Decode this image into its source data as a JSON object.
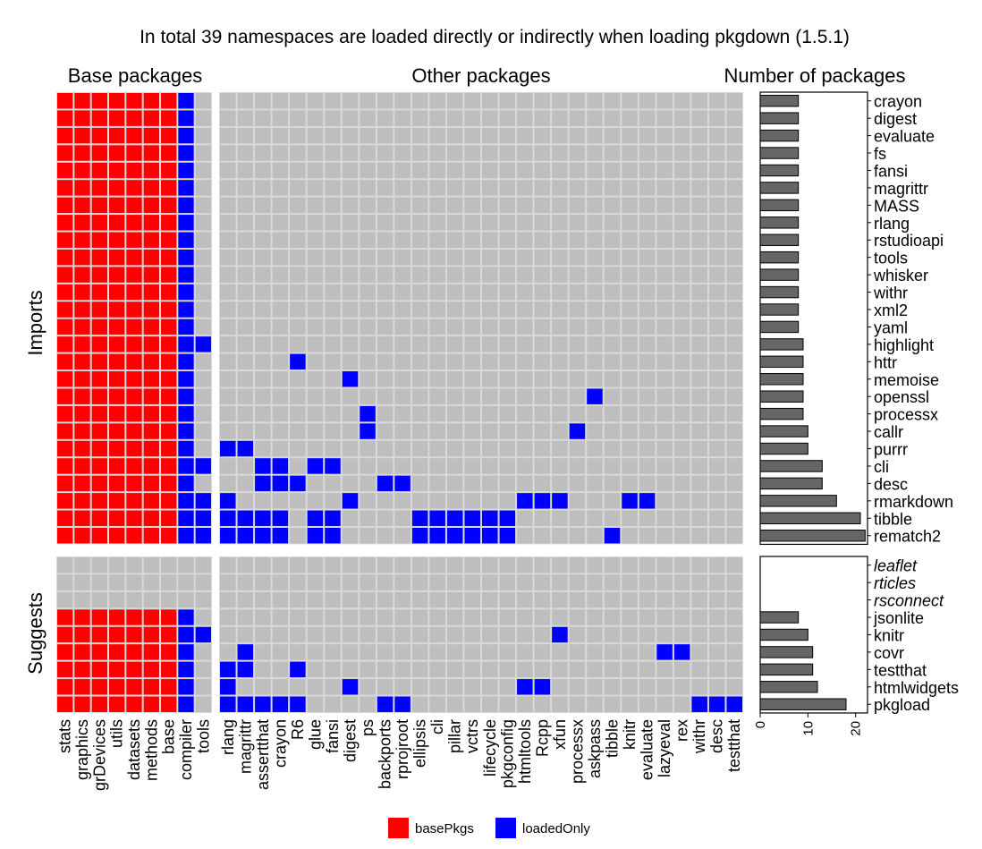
{
  "title": "In total 39 namespaces are loaded directly or indirectly when loading pkgdown (1.5.1)",
  "colors": {
    "basePkgs": "#ff0000",
    "loadedOnly": "#0000ff",
    "empty": "#bebebe",
    "bar": "#666666",
    "missing": "#999999"
  },
  "chart_data": {
    "type": "heatmap",
    "title": "In total 39 namespaces are loaded directly or indirectly when loading pkgdown (1.5.1)",
    "panels": {
      "base": "Base packages",
      "other": "Other packages",
      "count": "Number of packages"
    },
    "groups": {
      "imports": "Imports",
      "suggests": "Suggests"
    },
    "legend": {
      "position": "bottom",
      "items": [
        {
          "label": "basePkgs",
          "color": "#ff0000"
        },
        {
          "label": "loadedOnly",
          "color": "#0000ff"
        }
      ]
    },
    "base_columns": [
      "stats",
      "graphics",
      "grDevices",
      "utils",
      "datasets",
      "methods",
      "base",
      "compiler",
      "tools"
    ],
    "other_columns": [
      "rlang",
      "magrittr",
      "assertthat",
      "crayon",
      "R6",
      "glue",
      "fansi",
      "digest",
      "ps",
      "backports",
      "rprojroot",
      "ellipsis",
      "cli",
      "pillar",
      "vctrs",
      "lifecycle",
      "pkgconfig",
      "htmltools",
      "Rcpp",
      "xfun",
      "processx",
      "askpass",
      "tibble",
      "knitr",
      "evaluate",
      "lazyeval",
      "rex",
      "withr",
      "desc",
      "testthat"
    ],
    "count_axis": {
      "ticks": [
        0,
        10,
        20
      ],
      "xlim": [
        0,
        22.5
      ]
    },
    "imports": [
      {
        "name": "crayon",
        "count": 8,
        "base": 8,
        "other": []
      },
      {
        "name": "digest",
        "count": 8,
        "base": 8,
        "other": []
      },
      {
        "name": "evaluate",
        "count": 8,
        "base": 8,
        "other": []
      },
      {
        "name": "fs",
        "count": 8,
        "base": 8,
        "other": []
      },
      {
        "name": "fansi",
        "count": 8,
        "base": 8,
        "other": []
      },
      {
        "name": "magrittr",
        "count": 8,
        "base": 8,
        "other": []
      },
      {
        "name": "MASS",
        "count": 8,
        "base": 8,
        "other": []
      },
      {
        "name": "rlang",
        "count": 8,
        "base": 8,
        "other": []
      },
      {
        "name": "rstudioapi",
        "count": 8,
        "base": 8,
        "other": []
      },
      {
        "name": "tools",
        "count": 8,
        "base": 8,
        "other": []
      },
      {
        "name": "whisker",
        "count": 8,
        "base": 8,
        "other": []
      },
      {
        "name": "withr",
        "count": 8,
        "base": 8,
        "other": []
      },
      {
        "name": "xml2",
        "count": 8,
        "base": 8,
        "other": []
      },
      {
        "name": "yaml",
        "count": 8,
        "base": 8,
        "other": []
      },
      {
        "name": "highlight",
        "count": 9,
        "base": 9,
        "other": []
      },
      {
        "name": "httr",
        "count": 9,
        "base": 8,
        "other": [
          "R6"
        ]
      },
      {
        "name": "memoise",
        "count": 9,
        "base": 8,
        "other": [
          "digest"
        ]
      },
      {
        "name": "openssl",
        "count": 9,
        "base": 8,
        "other": [
          "askpass"
        ]
      },
      {
        "name": "processx",
        "count": 9,
        "base": 8,
        "other": [
          "ps"
        ]
      },
      {
        "name": "callr",
        "count": 10,
        "base": 8,
        "other": [
          "ps",
          "processx"
        ]
      },
      {
        "name": "purrr",
        "count": 10,
        "base": 8,
        "other": [
          "rlang",
          "magrittr"
        ]
      },
      {
        "name": "cli",
        "count": 13,
        "base": 9,
        "other": [
          "assertthat",
          "crayon",
          "glue",
          "fansi"
        ]
      },
      {
        "name": "desc",
        "count": 13,
        "base": 8,
        "other": [
          "assertthat",
          "crayon",
          "R6",
          "backports",
          "rprojroot"
        ]
      },
      {
        "name": "rmarkdown",
        "count": 16,
        "base": 9,
        "other": [
          "rlang",
          "digest",
          "htmltools",
          "Rcpp",
          "xfun",
          "knitr",
          "evaluate"
        ]
      },
      {
        "name": "tibble",
        "count": 21,
        "base": 9,
        "other": [
          "rlang",
          "magrittr",
          "assertthat",
          "crayon",
          "glue",
          "fansi",
          "ellipsis",
          "cli",
          "pillar",
          "vctrs",
          "lifecycle",
          "pkgconfig"
        ]
      },
      {
        "name": "rematch2",
        "count": 22,
        "base": 9,
        "other": [
          "rlang",
          "magrittr",
          "assertthat",
          "crayon",
          "glue",
          "fansi",
          "ellipsis",
          "cli",
          "pillar",
          "vctrs",
          "lifecycle",
          "pkgconfig",
          "tibble"
        ]
      }
    ],
    "suggests": [
      {
        "name": "leaflet",
        "count": 0,
        "base": 0,
        "other": [],
        "missing": true
      },
      {
        "name": "rticles",
        "count": 0,
        "base": 0,
        "other": [],
        "missing": true
      },
      {
        "name": "rsconnect",
        "count": 0,
        "base": 0,
        "other": [],
        "missing": true
      },
      {
        "name": "jsonlite",
        "count": 8,
        "base": 8,
        "other": []
      },
      {
        "name": "knitr",
        "count": 10,
        "base": 9,
        "other": [
          "xfun"
        ]
      },
      {
        "name": "covr",
        "count": 11,
        "base": 8,
        "other": [
          "magrittr",
          "lazyeval",
          "rex"
        ]
      },
      {
        "name": "testthat",
        "count": 11,
        "base": 8,
        "other": [
          "rlang",
          "magrittr",
          "R6"
        ]
      },
      {
        "name": "htmlwidgets",
        "count": 12,
        "base": 8,
        "other": [
          "rlang",
          "digest",
          "htmltools",
          "Rcpp"
        ]
      },
      {
        "name": "pkgload",
        "count": 18,
        "base": 8,
        "other": [
          "rlang",
          "magrittr",
          "assertthat",
          "crayon",
          "R6",
          "backports",
          "rprojroot",
          "withr",
          "desc",
          "testthat"
        ]
      }
    ]
  }
}
